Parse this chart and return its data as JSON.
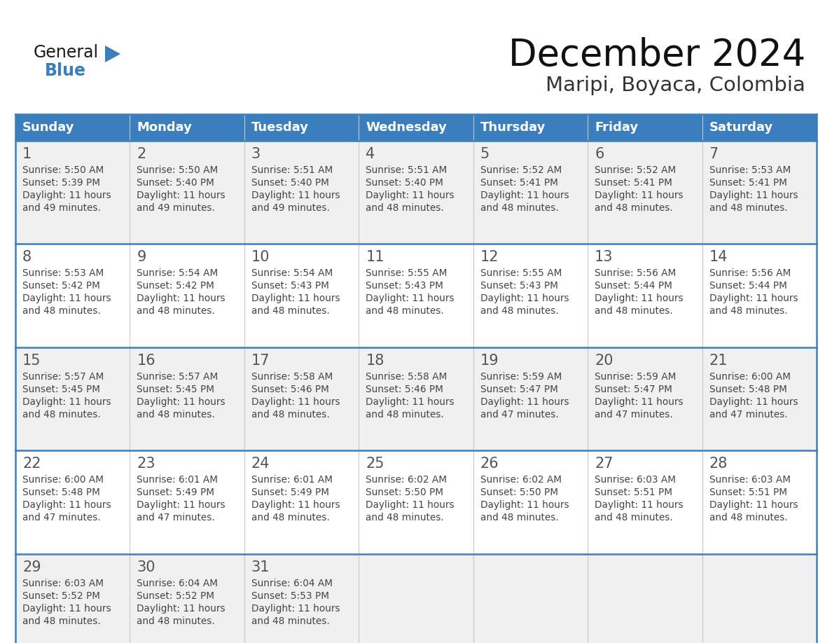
{
  "title": "December 2024",
  "subtitle": "Maripi, Boyaca, Colombia",
  "header_bg_color": "#3A7EBD",
  "header_text_color": "#FFFFFF",
  "row_bg_colors": [
    "#F0F0F0",
    "#FFFFFF"
  ],
  "border_color": "#3A7EBD",
  "text_color": "#444444",
  "days_of_week": [
    "Sunday",
    "Monday",
    "Tuesday",
    "Wednesday",
    "Thursday",
    "Friday",
    "Saturday"
  ],
  "calendar_data": [
    [
      {
        "day": 1,
        "sunrise": "5:50 AM",
        "sunset": "5:39 PM",
        "daylight_h": "11 hours",
        "daylight_m": "and 49 minutes."
      },
      {
        "day": 2,
        "sunrise": "5:50 AM",
        "sunset": "5:40 PM",
        "daylight_h": "11 hours",
        "daylight_m": "and 49 minutes."
      },
      {
        "day": 3,
        "sunrise": "5:51 AM",
        "sunset": "5:40 PM",
        "daylight_h": "11 hours",
        "daylight_m": "and 49 minutes."
      },
      {
        "day": 4,
        "sunrise": "5:51 AM",
        "sunset": "5:40 PM",
        "daylight_h": "11 hours",
        "daylight_m": "and 48 minutes."
      },
      {
        "day": 5,
        "sunrise": "5:52 AM",
        "sunset": "5:41 PM",
        "daylight_h": "11 hours",
        "daylight_m": "and 48 minutes."
      },
      {
        "day": 6,
        "sunrise": "5:52 AM",
        "sunset": "5:41 PM",
        "daylight_h": "11 hours",
        "daylight_m": "and 48 minutes."
      },
      {
        "day": 7,
        "sunrise": "5:53 AM",
        "sunset": "5:41 PM",
        "daylight_h": "11 hours",
        "daylight_m": "and 48 minutes."
      }
    ],
    [
      {
        "day": 8,
        "sunrise": "5:53 AM",
        "sunset": "5:42 PM",
        "daylight_h": "11 hours",
        "daylight_m": "and 48 minutes."
      },
      {
        "day": 9,
        "sunrise": "5:54 AM",
        "sunset": "5:42 PM",
        "daylight_h": "11 hours",
        "daylight_m": "and 48 minutes."
      },
      {
        "day": 10,
        "sunrise": "5:54 AM",
        "sunset": "5:43 PM",
        "daylight_h": "11 hours",
        "daylight_m": "and 48 minutes."
      },
      {
        "day": 11,
        "sunrise": "5:55 AM",
        "sunset": "5:43 PM",
        "daylight_h": "11 hours",
        "daylight_m": "and 48 minutes."
      },
      {
        "day": 12,
        "sunrise": "5:55 AM",
        "sunset": "5:43 PM",
        "daylight_h": "11 hours",
        "daylight_m": "and 48 minutes."
      },
      {
        "day": 13,
        "sunrise": "5:56 AM",
        "sunset": "5:44 PM",
        "daylight_h": "11 hours",
        "daylight_m": "and 48 minutes."
      },
      {
        "day": 14,
        "sunrise": "5:56 AM",
        "sunset": "5:44 PM",
        "daylight_h": "11 hours",
        "daylight_m": "and 48 minutes."
      }
    ],
    [
      {
        "day": 15,
        "sunrise": "5:57 AM",
        "sunset": "5:45 PM",
        "daylight_h": "11 hours",
        "daylight_m": "and 48 minutes."
      },
      {
        "day": 16,
        "sunrise": "5:57 AM",
        "sunset": "5:45 PM",
        "daylight_h": "11 hours",
        "daylight_m": "and 48 minutes."
      },
      {
        "day": 17,
        "sunrise": "5:58 AM",
        "sunset": "5:46 PM",
        "daylight_h": "11 hours",
        "daylight_m": "and 48 minutes."
      },
      {
        "day": 18,
        "sunrise": "5:58 AM",
        "sunset": "5:46 PM",
        "daylight_h": "11 hours",
        "daylight_m": "and 48 minutes."
      },
      {
        "day": 19,
        "sunrise": "5:59 AM",
        "sunset": "5:47 PM",
        "daylight_h": "11 hours",
        "daylight_m": "and 47 minutes."
      },
      {
        "day": 20,
        "sunrise": "5:59 AM",
        "sunset": "5:47 PM",
        "daylight_h": "11 hours",
        "daylight_m": "and 47 minutes."
      },
      {
        "day": 21,
        "sunrise": "6:00 AM",
        "sunset": "5:48 PM",
        "daylight_h": "11 hours",
        "daylight_m": "and 47 minutes."
      }
    ],
    [
      {
        "day": 22,
        "sunrise": "6:00 AM",
        "sunset": "5:48 PM",
        "daylight_h": "11 hours",
        "daylight_m": "and 47 minutes."
      },
      {
        "day": 23,
        "sunrise": "6:01 AM",
        "sunset": "5:49 PM",
        "daylight_h": "11 hours",
        "daylight_m": "and 47 minutes."
      },
      {
        "day": 24,
        "sunrise": "6:01 AM",
        "sunset": "5:49 PM",
        "daylight_h": "11 hours",
        "daylight_m": "and 48 minutes."
      },
      {
        "day": 25,
        "sunrise": "6:02 AM",
        "sunset": "5:50 PM",
        "daylight_h": "11 hours",
        "daylight_m": "and 48 minutes."
      },
      {
        "day": 26,
        "sunrise": "6:02 AM",
        "sunset": "5:50 PM",
        "daylight_h": "11 hours",
        "daylight_m": "and 48 minutes."
      },
      {
        "day": 27,
        "sunrise": "6:03 AM",
        "sunset": "5:51 PM",
        "daylight_h": "11 hours",
        "daylight_m": "and 48 minutes."
      },
      {
        "day": 28,
        "sunrise": "6:03 AM",
        "sunset": "5:51 PM",
        "daylight_h": "11 hours",
        "daylight_m": "and 48 minutes."
      }
    ],
    [
      {
        "day": 29,
        "sunrise": "6:03 AM",
        "sunset": "5:52 PM",
        "daylight_h": "11 hours",
        "daylight_m": "and 48 minutes."
      },
      {
        "day": 30,
        "sunrise": "6:04 AM",
        "sunset": "5:52 PM",
        "daylight_h": "11 hours",
        "daylight_m": "and 48 minutes."
      },
      {
        "day": 31,
        "sunrise": "6:04 AM",
        "sunset": "5:53 PM",
        "daylight_h": "11 hours",
        "daylight_m": "and 48 minutes."
      },
      null,
      null,
      null,
      null
    ]
  ],
  "logo_general_color": "#1A1A1A",
  "logo_blue_color": "#3A7EBD",
  "fig_width": 11.88,
  "fig_height": 9.18,
  "dpi": 100
}
